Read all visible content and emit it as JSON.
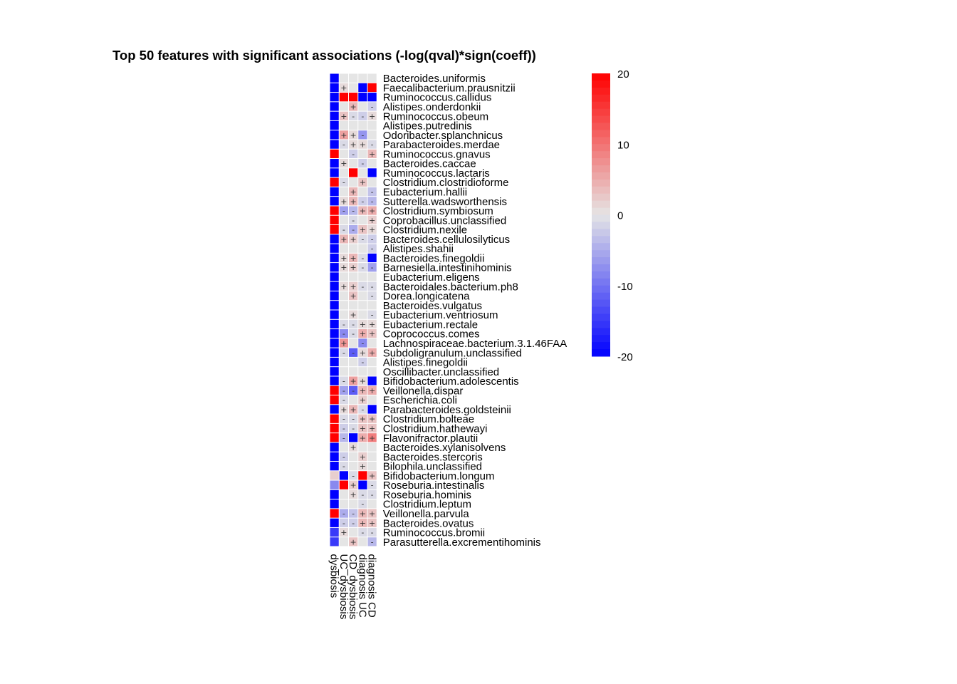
{
  "chart_data": {
    "type": "heatmap",
    "title": "Top 50 features with significant associations (-log(qval)*sign(coeff))",
    "columns": [
      "dysbiosis",
      "UC_dysbiosis",
      "CD_dysbiosis",
      "diagnosis UC",
      "diagnosis CD"
    ],
    "rows": [
      "Bacteroides.uniformis",
      "Faecalibacterium.prausnitzii",
      "Ruminococcus.callidus",
      "Alistipes.onderdonkii",
      "Ruminococcus.obeum",
      "Alistipes.putredinis",
      "Odoribacter.splanchnicus",
      "Parabacteroides.merdae",
      "Ruminococcus.gnavus",
      "Bacteroides.caccae",
      "Ruminococcus.lactaris",
      "Clostridium.clostridioforme",
      "Eubacterium.hallii",
      "Sutterella.wadsworthensis",
      "Clostridium.symbiosum",
      "Coprobacillus.unclassified",
      "Clostridium.nexile",
      "Bacteroides.cellulosilyticus",
      "Alistipes.shahii",
      "Bacteroides.finegoldii",
      "Barnesiella.intestinihominis",
      "Eubacterium.eligens",
      "Bacteroidales.bacterium.ph8",
      "Dorea.longicatena",
      "Bacteroides.vulgatus",
      "Eubacterium.ventriosum",
      "Eubacterium.rectale",
      "Coprococcus.comes",
      "Lachnospiraceae.bacterium.3.1.46FAA",
      "Subdoligranulum.unclassified",
      "Alistipes.finegoldii",
      "Oscillibacter.unclassified",
      "Bifidobacterium.adolescentis",
      "Veillonella.dispar",
      "Escherichia.coli",
      "Parabacteroides.goldsteinii",
      "Clostridium.bolteae",
      "Clostridium.hathewayi",
      "Flavonifractor.plautii",
      "Bacteroides.xylanisolvens",
      "Bacteroides.stercoris",
      "Bilophila.unclassified",
      "Bifidobacterium.longum",
      "Roseburia.intestinalis",
      "Roseburia.hominis",
      "Clostridium.leptum",
      "Veillonella.parvula",
      "Bacteroides.ovatus",
      "Ruminococcus.bromii",
      "Parasutterella.excrementihominis"
    ],
    "values": [
      [
        -20,
        0,
        0,
        0,
        0
      ],
      [
        -20,
        1,
        0,
        -20,
        20
      ],
      [
        -20,
        20,
        20,
        -20,
        -20
      ],
      [
        -20,
        0,
        4,
        0,
        -2
      ],
      [
        -20,
        3,
        -1,
        -2,
        1
      ],
      [
        -20,
        0,
        0,
        0,
        0
      ],
      [
        -20,
        6,
        1,
        -7,
        0
      ],
      [
        -20,
        -1,
        1,
        1,
        -1
      ],
      [
        20,
        0,
        -2,
        0,
        4
      ],
      [
        -20,
        1,
        0,
        -2,
        0
      ],
      [
        -20,
        0,
        20,
        0,
        -20
      ],
      [
        20,
        -1,
        0,
        3,
        0
      ],
      [
        -20,
        0,
        4,
        0,
        -3
      ],
      [
        -20,
        1,
        4,
        -2,
        -4
      ],
      [
        20,
        -6,
        -4,
        4,
        5
      ],
      [
        20,
        0,
        -1,
        0,
        2
      ],
      [
        20,
        -1,
        -5,
        3,
        1
      ],
      [
        -20,
        4,
        2,
        -1,
        -2
      ],
      [
        -20,
        0,
        0,
        0,
        -2
      ],
      [
        -20,
        1,
        4,
        -1,
        -20
      ],
      [
        -20,
        1,
        2,
        -1,
        -6
      ],
      [
        -20,
        0,
        0,
        0,
        0
      ],
      [
        -20,
        1,
        2,
        -1,
        -1
      ],
      [
        -20,
        0,
        3,
        0,
        -1
      ],
      [
        -20,
        0,
        0,
        0,
        0
      ],
      [
        -20,
        0,
        1,
        0,
        -1
      ],
      [
        -20,
        -1,
        -1,
        1,
        1
      ],
      [
        -20,
        -8,
        -1,
        5,
        3
      ],
      [
        -20,
        7,
        0,
        -8,
        0
      ],
      [
        -20,
        -1,
        -12,
        1,
        5
      ],
      [
        -20,
        0,
        0,
        -2,
        0
      ],
      [
        -20,
        0,
        0,
        0,
        0
      ],
      [
        -20,
        -1,
        6,
        1,
        -20
      ],
      [
        20,
        -6,
        -12,
        4,
        5
      ],
      [
        20,
        -1,
        0,
        2,
        0
      ],
      [
        -20,
        1,
        4,
        -1,
        -20
      ],
      [
        20,
        -1,
        -1,
        3,
        3
      ],
      [
        20,
        -2,
        -1,
        3,
        3
      ],
      [
        20,
        -4,
        -20,
        5,
        9
      ],
      [
        -20,
        0,
        1,
        0,
        0
      ],
      [
        -20,
        -2,
        0,
        2,
        0
      ],
      [
        -20,
        -1,
        0,
        1,
        0
      ],
      [
        2,
        -20,
        -1,
        20,
        3
      ],
      [
        -8,
        20,
        2,
        -20,
        -1
      ],
      [
        -20,
        0,
        1,
        -1,
        -1
      ],
      [
        -20,
        0,
        0,
        -1,
        0
      ],
      [
        20,
        -5,
        -3,
        4,
        3
      ],
      [
        -20,
        -2,
        -2,
        4,
        3
      ],
      [
        -15,
        1,
        0,
        -1,
        -1
      ],
      [
        -15,
        0,
        3,
        0,
        -4
      ]
    ],
    "value_range": [
      -20,
      20
    ],
    "colorbar_ticks": [
      20,
      10,
      0,
      -10,
      -20
    ],
    "significance_marks": [
      "+",
      "-"
    ],
    "colors": {
      "low": "#0000ff",
      "mid": "#e5e5e5",
      "high": "#ff0000"
    },
    "legend_position": "right"
  }
}
